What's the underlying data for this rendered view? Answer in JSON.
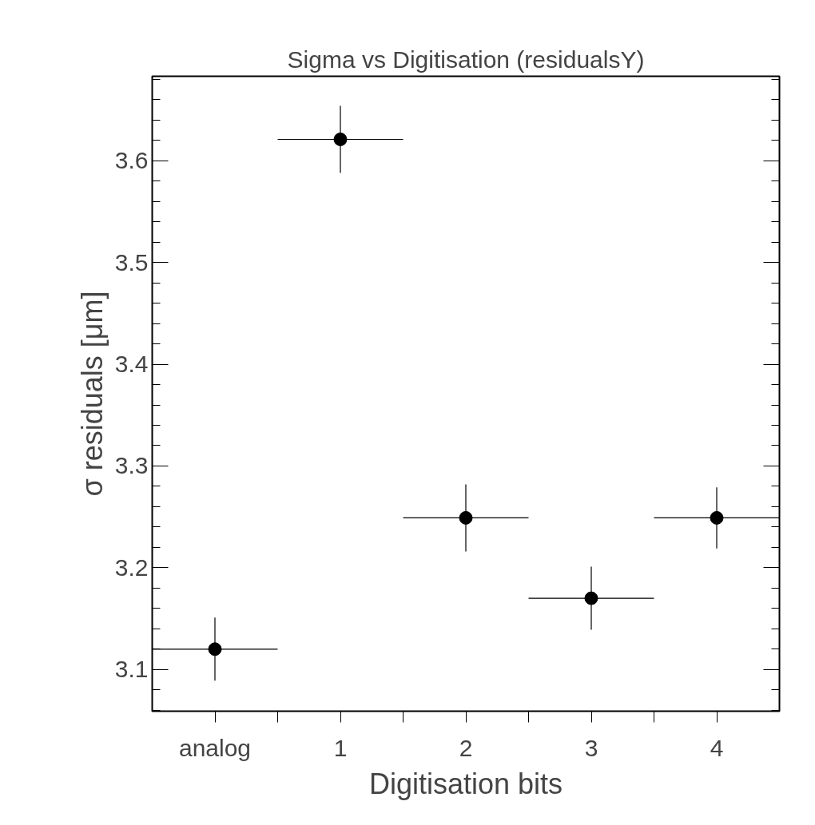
{
  "chart_data": {
    "type": "scatter",
    "title": "Sigma vs Digitisation (residualsY)",
    "xlabel": "Digitisation bits",
    "ylabel": "σ residuals [μm]",
    "x": [
      0,
      1,
      2,
      3,
      4
    ],
    "values": [
      3.12,
      3.621,
      3.249,
      3.17,
      3.249
    ],
    "errors": [
      0.031,
      0.033,
      0.033,
      0.031,
      0.03
    ],
    "xerrors": [
      0.5,
      0.5,
      0.5,
      0.5,
      0.5
    ],
    "color": "#000000",
    "marker": "circle",
    "xlim": [
      -0.5,
      4.5
    ],
    "xticks": [
      {
        "value": 0,
        "label": "analog"
      },
      {
        "value": 0.5,
        "label": null
      },
      {
        "value": 1,
        "label": "1"
      },
      {
        "value": 1.5,
        "label": null
      },
      {
        "value": 2,
        "label": "2"
      },
      {
        "value": 2.5,
        "label": null
      },
      {
        "value": 3,
        "label": "3"
      },
      {
        "value": 3.5,
        "label": null
      },
      {
        "value": 4,
        "label": "4"
      }
    ],
    "ylim": [
      3.059,
      3.683
    ],
    "yticks": [
      3.1,
      3.2,
      3.3,
      3.4,
      3.5,
      3.6
    ],
    "grid": false
  }
}
